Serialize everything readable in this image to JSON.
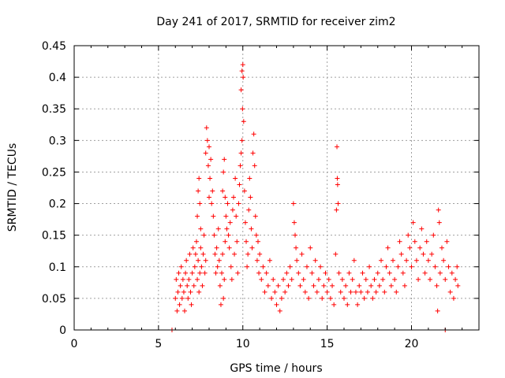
{
  "chart_data": {
    "type": "scatter",
    "title": "Day 241 of 2017, SRMTID for receiver zim2",
    "xlabel": "GPS time / hours",
    "ylabel": "SRMTID / TECUs",
    "xlim": [
      0,
      24
    ],
    "ylim": [
      0,
      0.45
    ],
    "x_ticks": [
      0,
      5,
      10,
      15,
      20
    ],
    "x_tick_labels": [
      "0",
      "5",
      "10",
      "15",
      "20"
    ],
    "y_ticks": [
      0,
      0.05,
      0.1,
      0.15,
      0.2,
      0.25,
      0.3,
      0.35,
      0.4,
      0.45
    ],
    "y_tick_labels": [
      "0",
      "0.05",
      "0.1",
      "0.15",
      "0.2",
      "0.25",
      "0.3",
      "0.35",
      "0.4",
      "0.45"
    ],
    "grid": true,
    "marker": "plus",
    "color": "#ff0000",
    "series": [
      {
        "name": "SRMTID",
        "points": [
          [
            5.8,
            0.0
          ],
          [
            22.0,
            0.0
          ],
          [
            6.0,
            0.05
          ],
          [
            6.05,
            0.08
          ],
          [
            6.1,
            0.03
          ],
          [
            6.15,
            0.06
          ],
          [
            6.2,
            0.09
          ],
          [
            6.25,
            0.04
          ],
          [
            6.3,
            0.07
          ],
          [
            6.35,
            0.1
          ],
          [
            6.4,
            0.05
          ],
          [
            6.45,
            0.08
          ],
          [
            6.5,
            0.06
          ],
          [
            6.55,
            0.03
          ],
          [
            6.6,
            0.09
          ],
          [
            6.65,
            0.11
          ],
          [
            6.7,
            0.07
          ],
          [
            6.75,
            0.05
          ],
          [
            6.8,
            0.08
          ],
          [
            6.85,
            0.12
          ],
          [
            6.9,
            0.06
          ],
          [
            6.95,
            0.04
          ],
          [
            7.0,
            0.09
          ],
          [
            7.05,
            0.13
          ],
          [
            7.1,
            0.07
          ],
          [
            7.15,
            0.1
          ],
          [
            7.2,
            0.12
          ],
          [
            7.25,
            0.14
          ],
          [
            7.3,
            0.08
          ],
          [
            7.35,
            0.11
          ],
          [
            7.4,
            0.06
          ],
          [
            7.45,
            0.09
          ],
          [
            7.5,
            0.13
          ],
          [
            7.55,
            0.1
          ],
          [
            7.6,
            0.07
          ],
          [
            7.65,
            0.12
          ],
          [
            7.7,
            0.15
          ],
          [
            7.75,
            0.09
          ],
          [
            7.8,
            0.11
          ],
          [
            7.3,
            0.18
          ],
          [
            7.35,
            0.22
          ],
          [
            7.4,
            0.24
          ],
          [
            7.45,
            0.2
          ],
          [
            7.5,
            0.16
          ],
          [
            7.8,
            0.28
          ],
          [
            7.85,
            0.32
          ],
          [
            7.9,
            0.3
          ],
          [
            7.95,
            0.26
          ],
          [
            8.0,
            0.29
          ],
          [
            8.05,
            0.24
          ],
          [
            8.1,
            0.27
          ],
          [
            8.15,
            0.2
          ],
          [
            8.2,
            0.22
          ],
          [
            8.25,
            0.18
          ],
          [
            8.0,
            0.21
          ],
          [
            8.3,
            0.15
          ],
          [
            8.35,
            0.12
          ],
          [
            8.4,
            0.09
          ],
          [
            8.45,
            0.13
          ],
          [
            8.5,
            0.1
          ],
          [
            8.55,
            0.16
          ],
          [
            8.6,
            0.11
          ],
          [
            8.65,
            0.07
          ],
          [
            8.7,
            0.04
          ],
          [
            8.75,
            0.09
          ],
          [
            8.8,
            0.12
          ],
          [
            8.85,
            0.05
          ],
          [
            8.9,
            0.08
          ],
          [
            8.95,
            0.14
          ],
          [
            8.8,
            0.22
          ],
          [
            8.85,
            0.25
          ],
          [
            8.9,
            0.27
          ],
          [
            8.95,
            0.21
          ],
          [
            9.0,
            0.18
          ],
          [
            9.05,
            0.16
          ],
          [
            9.1,
            0.2
          ],
          [
            9.15,
            0.15
          ],
          [
            9.2,
            0.13
          ],
          [
            9.25,
            0.17
          ],
          [
            9.3,
            0.1
          ],
          [
            9.35,
            0.08
          ],
          [
            9.4,
            0.19
          ],
          [
            9.45,
            0.21
          ],
          [
            9.5,
            0.12
          ],
          [
            9.55,
            0.24
          ],
          [
            9.6,
            0.18
          ],
          [
            9.65,
            0.14
          ],
          [
            9.7,
            0.09
          ],
          [
            9.75,
            0.2
          ],
          [
            9.8,
            0.23
          ],
          [
            9.85,
            0.26
          ],
          [
            9.9,
            0.28
          ],
          [
            9.95,
            0.3
          ],
          [
            9.9,
            0.38
          ],
          [
            9.95,
            0.41
          ],
          [
            10.0,
            0.42
          ],
          [
            10.02,
            0.4
          ],
          [
            9.98,
            0.35
          ],
          [
            10.05,
            0.33
          ],
          [
            10.1,
            0.22
          ],
          [
            10.15,
            0.17
          ],
          [
            10.2,
            0.14
          ],
          [
            10.25,
            0.1
          ],
          [
            10.3,
            0.12
          ],
          [
            10.35,
            0.19
          ],
          [
            10.4,
            0.24
          ],
          [
            10.45,
            0.21
          ],
          [
            10.5,
            0.16
          ],
          [
            10.55,
            0.13
          ],
          [
            10.6,
            0.28
          ],
          [
            10.65,
            0.31
          ],
          [
            10.7,
            0.26
          ],
          [
            10.75,
            0.18
          ],
          [
            10.8,
            0.15
          ],
          [
            10.85,
            0.11
          ],
          [
            10.9,
            0.14
          ],
          [
            10.95,
            0.09
          ],
          [
            11.0,
            0.12
          ],
          [
            11.1,
            0.08
          ],
          [
            11.2,
            0.1
          ],
          [
            11.3,
            0.06
          ],
          [
            11.4,
            0.09
          ],
          [
            11.5,
            0.07
          ],
          [
            11.6,
            0.11
          ],
          [
            11.7,
            0.05
          ],
          [
            11.8,
            0.08
          ],
          [
            11.9,
            0.06
          ],
          [
            12.0,
            0.04
          ],
          [
            12.1,
            0.07
          ],
          [
            12.2,
            0.03
          ],
          [
            12.3,
            0.05
          ],
          [
            12.4,
            0.08
          ],
          [
            12.5,
            0.06
          ],
          [
            12.6,
            0.09
          ],
          [
            12.7,
            0.07
          ],
          [
            12.8,
            0.1
          ],
          [
            12.9,
            0.08
          ],
          [
            13.0,
            0.2
          ],
          [
            13.05,
            0.17
          ],
          [
            13.1,
            0.15
          ],
          [
            13.15,
            0.13
          ],
          [
            13.2,
            0.11
          ],
          [
            13.3,
            0.09
          ],
          [
            13.4,
            0.07
          ],
          [
            13.5,
            0.12
          ],
          [
            13.6,
            0.08
          ],
          [
            13.7,
            0.06
          ],
          [
            13.8,
            0.1
          ],
          [
            13.9,
            0.05
          ],
          [
            14.0,
            0.13
          ],
          [
            14.1,
            0.09
          ],
          [
            14.2,
            0.07
          ],
          [
            14.3,
            0.11
          ],
          [
            14.4,
            0.06
          ],
          [
            14.5,
            0.08
          ],
          [
            14.6,
            0.1
          ],
          [
            14.7,
            0.05
          ],
          [
            14.8,
            0.07
          ],
          [
            14.9,
            0.09
          ],
          [
            15.0,
            0.06
          ],
          [
            15.1,
            0.08
          ],
          [
            15.2,
            0.05
          ],
          [
            15.3,
            0.07
          ],
          [
            15.4,
            0.04
          ],
          [
            15.5,
            0.12
          ],
          [
            15.55,
            0.19
          ],
          [
            15.6,
            0.24
          ],
          [
            15.62,
            0.23
          ],
          [
            15.58,
            0.29
          ],
          [
            15.65,
            0.2
          ],
          [
            15.7,
            0.09
          ],
          [
            15.8,
            0.06
          ],
          [
            15.9,
            0.08
          ],
          [
            16.0,
            0.05
          ],
          [
            16.1,
            0.07
          ],
          [
            16.2,
            0.04
          ],
          [
            16.3,
            0.09
          ],
          [
            16.4,
            0.06
          ],
          [
            16.5,
            0.08
          ],
          [
            16.6,
            0.11
          ],
          [
            16.7,
            0.06
          ],
          [
            16.8,
            0.04
          ],
          [
            16.9,
            0.07
          ],
          [
            17.0,
            0.06
          ],
          [
            17.1,
            0.09
          ],
          [
            17.2,
            0.05
          ],
          [
            17.3,
            0.08
          ],
          [
            17.4,
            0.06
          ],
          [
            17.5,
            0.1
          ],
          [
            17.6,
            0.07
          ],
          [
            17.7,
            0.05
          ],
          [
            17.8,
            0.08
          ],
          [
            17.9,
            0.06
          ],
          [
            18.0,
            0.09
          ],
          [
            18.1,
            0.07
          ],
          [
            18.2,
            0.11
          ],
          [
            18.3,
            0.08
          ],
          [
            18.4,
            0.06
          ],
          [
            18.5,
            0.1
          ],
          [
            18.6,
            0.13
          ],
          [
            18.7,
            0.09
          ],
          [
            18.8,
            0.07
          ],
          [
            18.9,
            0.11
          ],
          [
            19.0,
            0.08
          ],
          [
            19.1,
            0.06
          ],
          [
            19.2,
            0.1
          ],
          [
            19.3,
            0.14
          ],
          [
            19.4,
            0.12
          ],
          [
            19.5,
            0.09
          ],
          [
            19.6,
            0.07
          ],
          [
            19.7,
            0.11
          ],
          [
            19.8,
            0.15
          ],
          [
            19.9,
            0.13
          ],
          [
            20.0,
            0.1
          ],
          [
            20.1,
            0.17
          ],
          [
            20.2,
            0.14
          ],
          [
            20.3,
            0.11
          ],
          [
            20.4,
            0.08
          ],
          [
            20.5,
            0.13
          ],
          [
            20.6,
            0.16
          ],
          [
            20.7,
            0.12
          ],
          [
            20.8,
            0.09
          ],
          [
            20.9,
            0.14
          ],
          [
            21.0,
            0.11
          ],
          [
            21.1,
            0.08
          ],
          [
            21.2,
            0.12
          ],
          [
            21.3,
            0.15
          ],
          [
            21.4,
            0.1
          ],
          [
            21.5,
            0.07
          ],
          [
            21.55,
            0.03
          ],
          [
            21.6,
            0.19
          ],
          [
            21.65,
            0.17
          ],
          [
            21.7,
            0.09
          ],
          [
            21.8,
            0.13
          ],
          [
            21.9,
            0.11
          ],
          [
            22.0,
            0.08
          ],
          [
            22.1,
            0.14
          ],
          [
            22.2,
            0.1
          ],
          [
            22.3,
            0.06
          ],
          [
            22.4,
            0.09
          ],
          [
            22.5,
            0.05
          ],
          [
            22.6,
            0.08
          ],
          [
            22.7,
            0.1
          ],
          [
            22.75,
            0.07
          ]
        ]
      }
    ]
  }
}
